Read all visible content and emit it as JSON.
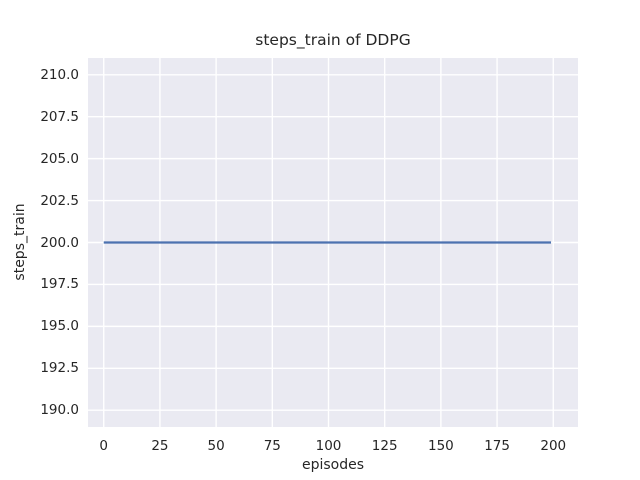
{
  "chart_data": {
    "type": "line",
    "title": "steps_train of DDPG",
    "xlabel": "episodes",
    "ylabel": "steps_train",
    "x_ticks": [
      0,
      25,
      50,
      75,
      100,
      125,
      150,
      175,
      200
    ],
    "x_tick_labels": [
      "0",
      "25",
      "50",
      "75",
      "100",
      "125",
      "150",
      "175",
      "200"
    ],
    "y_ticks": [
      190.0,
      192.5,
      195.0,
      197.5,
      200.0,
      202.5,
      205.0,
      207.5,
      210.0
    ],
    "y_tick_labels": [
      "190.0",
      "192.5",
      "195.0",
      "197.5",
      "200.0",
      "202.5",
      "205.0",
      "207.5",
      "210.0"
    ],
    "xlim": [
      -7,
      211
    ],
    "ylim": [
      189,
      211
    ],
    "grid": true,
    "legend_visible": false,
    "series": [
      {
        "name": "steps_train",
        "x": [
          0,
          199
        ],
        "y": [
          200,
          200
        ],
        "description": "constant value 200 for every training episode from 0 to 199"
      }
    ],
    "colors": {
      "line": "#4c72b0",
      "plot_background": "#eaeaf2",
      "grid": "#ffffff",
      "text": "#262626",
      "figure_background": "#ffffff"
    }
  }
}
